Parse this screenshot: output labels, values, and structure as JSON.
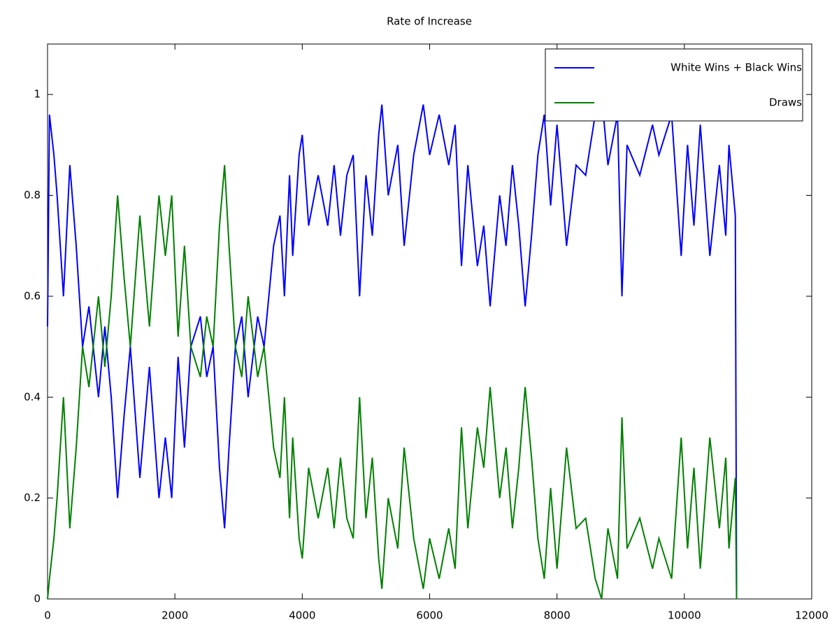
{
  "chart_data": {
    "type": "line",
    "title": "Rate of Increase",
    "x": [
      0,
      30,
      100,
      150,
      250,
      350,
      450,
      550,
      650,
      800,
      900,
      1000,
      1100,
      1200,
      1300,
      1450,
      1600,
      1750,
      1850,
      1950,
      2050,
      2150,
      2250,
      2400,
      2500,
      2600,
      2700,
      2780,
      2850,
      2950,
      3050,
      3150,
      3300,
      3400,
      3550,
      3650,
      3720,
      3800,
      3850,
      3950,
      4000,
      4100,
      4250,
      4400,
      4500,
      4600,
      4700,
      4800,
      4900,
      5000,
      5100,
      5200,
      5250,
      5350,
      5500,
      5600,
      5750,
      5900,
      6000,
      6150,
      6300,
      6400,
      6500,
      6600,
      6750,
      6850,
      6950,
      7100,
      7200,
      7300,
      7400,
      7500,
      7600,
      7700,
      7800,
      7900,
      8000,
      8150,
      8300,
      8450,
      8600,
      8700,
      8800,
      8950,
      9020,
      9100,
      9300,
      9500,
      9600,
      9800,
      9950,
      10050,
      10150,
      10250,
      10400,
      10550,
      10650,
      10700,
      10800,
      10820
    ],
    "series": [
      {
        "name": "White Wins + Black Wins",
        "color": "#0000ff",
        "values": [
          0.54,
          0.96,
          0.88,
          0.8,
          0.6,
          0.86,
          0.7,
          0.5,
          0.58,
          0.4,
          0.54,
          0.4,
          0.2,
          0.36,
          0.5,
          0.24,
          0.46,
          0.2,
          0.32,
          0.2,
          0.48,
          0.3,
          0.5,
          0.56,
          0.44,
          0.5,
          0.26,
          0.14,
          0.3,
          0.5,
          0.56,
          0.4,
          0.56,
          0.5,
          0.7,
          0.76,
          0.6,
          0.84,
          0.68,
          0.88,
          0.92,
          0.74,
          0.84,
          0.74,
          0.86,
          0.72,
          0.84,
          0.88,
          0.6,
          0.84,
          0.72,
          0.92,
          0.98,
          0.8,
          0.9,
          0.7,
          0.88,
          0.98,
          0.88,
          0.96,
          0.86,
          0.94,
          0.66,
          0.86,
          0.66,
          0.74,
          0.58,
          0.8,
          0.7,
          0.86,
          0.74,
          0.58,
          0.72,
          0.88,
          0.96,
          0.78,
          0.94,
          0.7,
          0.86,
          0.84,
          0.96,
          1.0,
          0.86,
          0.96,
          0.6,
          0.9,
          0.84,
          0.94,
          0.88,
          0.96,
          0.68,
          0.9,
          0.74,
          0.94,
          0.68,
          0.86,
          0.72,
          0.9,
          0.76,
          0
        ]
      },
      {
        "name": "Draws",
        "color": "#008000",
        "values": [
          0,
          0.04,
          0.12,
          0.2,
          0.4,
          0.14,
          0.3,
          0.5,
          0.42,
          0.6,
          0.46,
          0.6,
          0.8,
          0.64,
          0.5,
          0.76,
          0.54,
          0.8,
          0.68,
          0.8,
          0.52,
          0.7,
          0.5,
          0.44,
          0.56,
          0.5,
          0.74,
          0.86,
          0.7,
          0.5,
          0.44,
          0.6,
          0.44,
          0.5,
          0.3,
          0.24,
          0.4,
          0.16,
          0.32,
          0.12,
          0.08,
          0.26,
          0.16,
          0.26,
          0.14,
          0.28,
          0.16,
          0.12,
          0.4,
          0.16,
          0.28,
          0.08,
          0.02,
          0.2,
          0.1,
          0.3,
          0.12,
          0.02,
          0.12,
          0.04,
          0.14,
          0.06,
          0.34,
          0.14,
          0.34,
          0.26,
          0.42,
          0.2,
          0.3,
          0.14,
          0.26,
          0.42,
          0.28,
          0.12,
          0.04,
          0.22,
          0.06,
          0.3,
          0.14,
          0.16,
          0.04,
          0,
          0.14,
          0.04,
          0.36,
          0.1,
          0.16,
          0.06,
          0.12,
          0.04,
          0.32,
          0.1,
          0.26,
          0.06,
          0.32,
          0.14,
          0.28,
          0.1,
          0.24,
          0
        ]
      }
    ],
    "xlim": [
      0,
      12000
    ],
    "xticks": [
      0,
      2000,
      4000,
      6000,
      8000,
      10000,
      12000
    ],
    "ylim": [
      0,
      1.1
    ],
    "yticks": [
      0,
      0.2,
      0.4,
      0.6,
      0.8,
      1
    ],
    "grid": false,
    "legend": "upper right"
  }
}
